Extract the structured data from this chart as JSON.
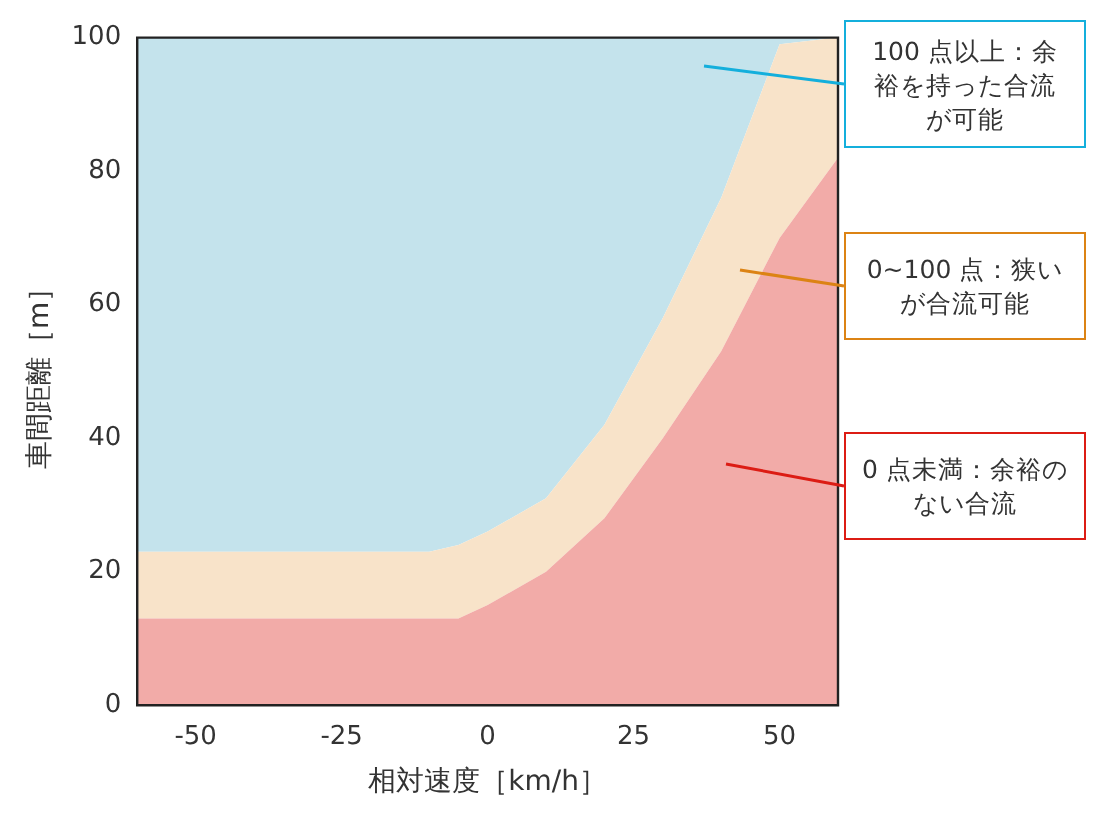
{
  "chart_data": {
    "type": "area",
    "stacked": true,
    "xlabel": "相対速度［km/h］",
    "ylabel": "車間距離［m］",
    "x": [
      -60,
      -10,
      -5,
      0,
      10,
      20,
      30,
      40,
      50,
      60
    ],
    "series": [
      {
        "color": "#f2aba8",
        "values": [
          13,
          13,
          13,
          15,
          20,
          28,
          40,
          53,
          70,
          82
        ]
      },
      {
        "color": "#f8e3c9",
        "values": [
          10,
          10,
          11,
          11,
          11,
          14,
          18,
          23,
          29,
          18
        ]
      },
      {
        "color": "#c4e3ec",
        "values": [
          77,
          77,
          76,
          74,
          69,
          58,
          42,
          24,
          1,
          0
        ]
      }
    ],
    "xlim": [
      -60,
      60
    ],
    "ylim": [
      0,
      100
    ],
    "xticks": [
      -50,
      -25,
      0,
      25,
      50
    ],
    "yticks": [
      0,
      20,
      40,
      60,
      80,
      100
    ],
    "grid": false,
    "legend": false,
    "annotations": [
      "100 点以上：余裕を持った合流が可能",
      "0~100 点：狭いが合流可能",
      "0 点未満：余裕のない合流"
    ]
  }
}
